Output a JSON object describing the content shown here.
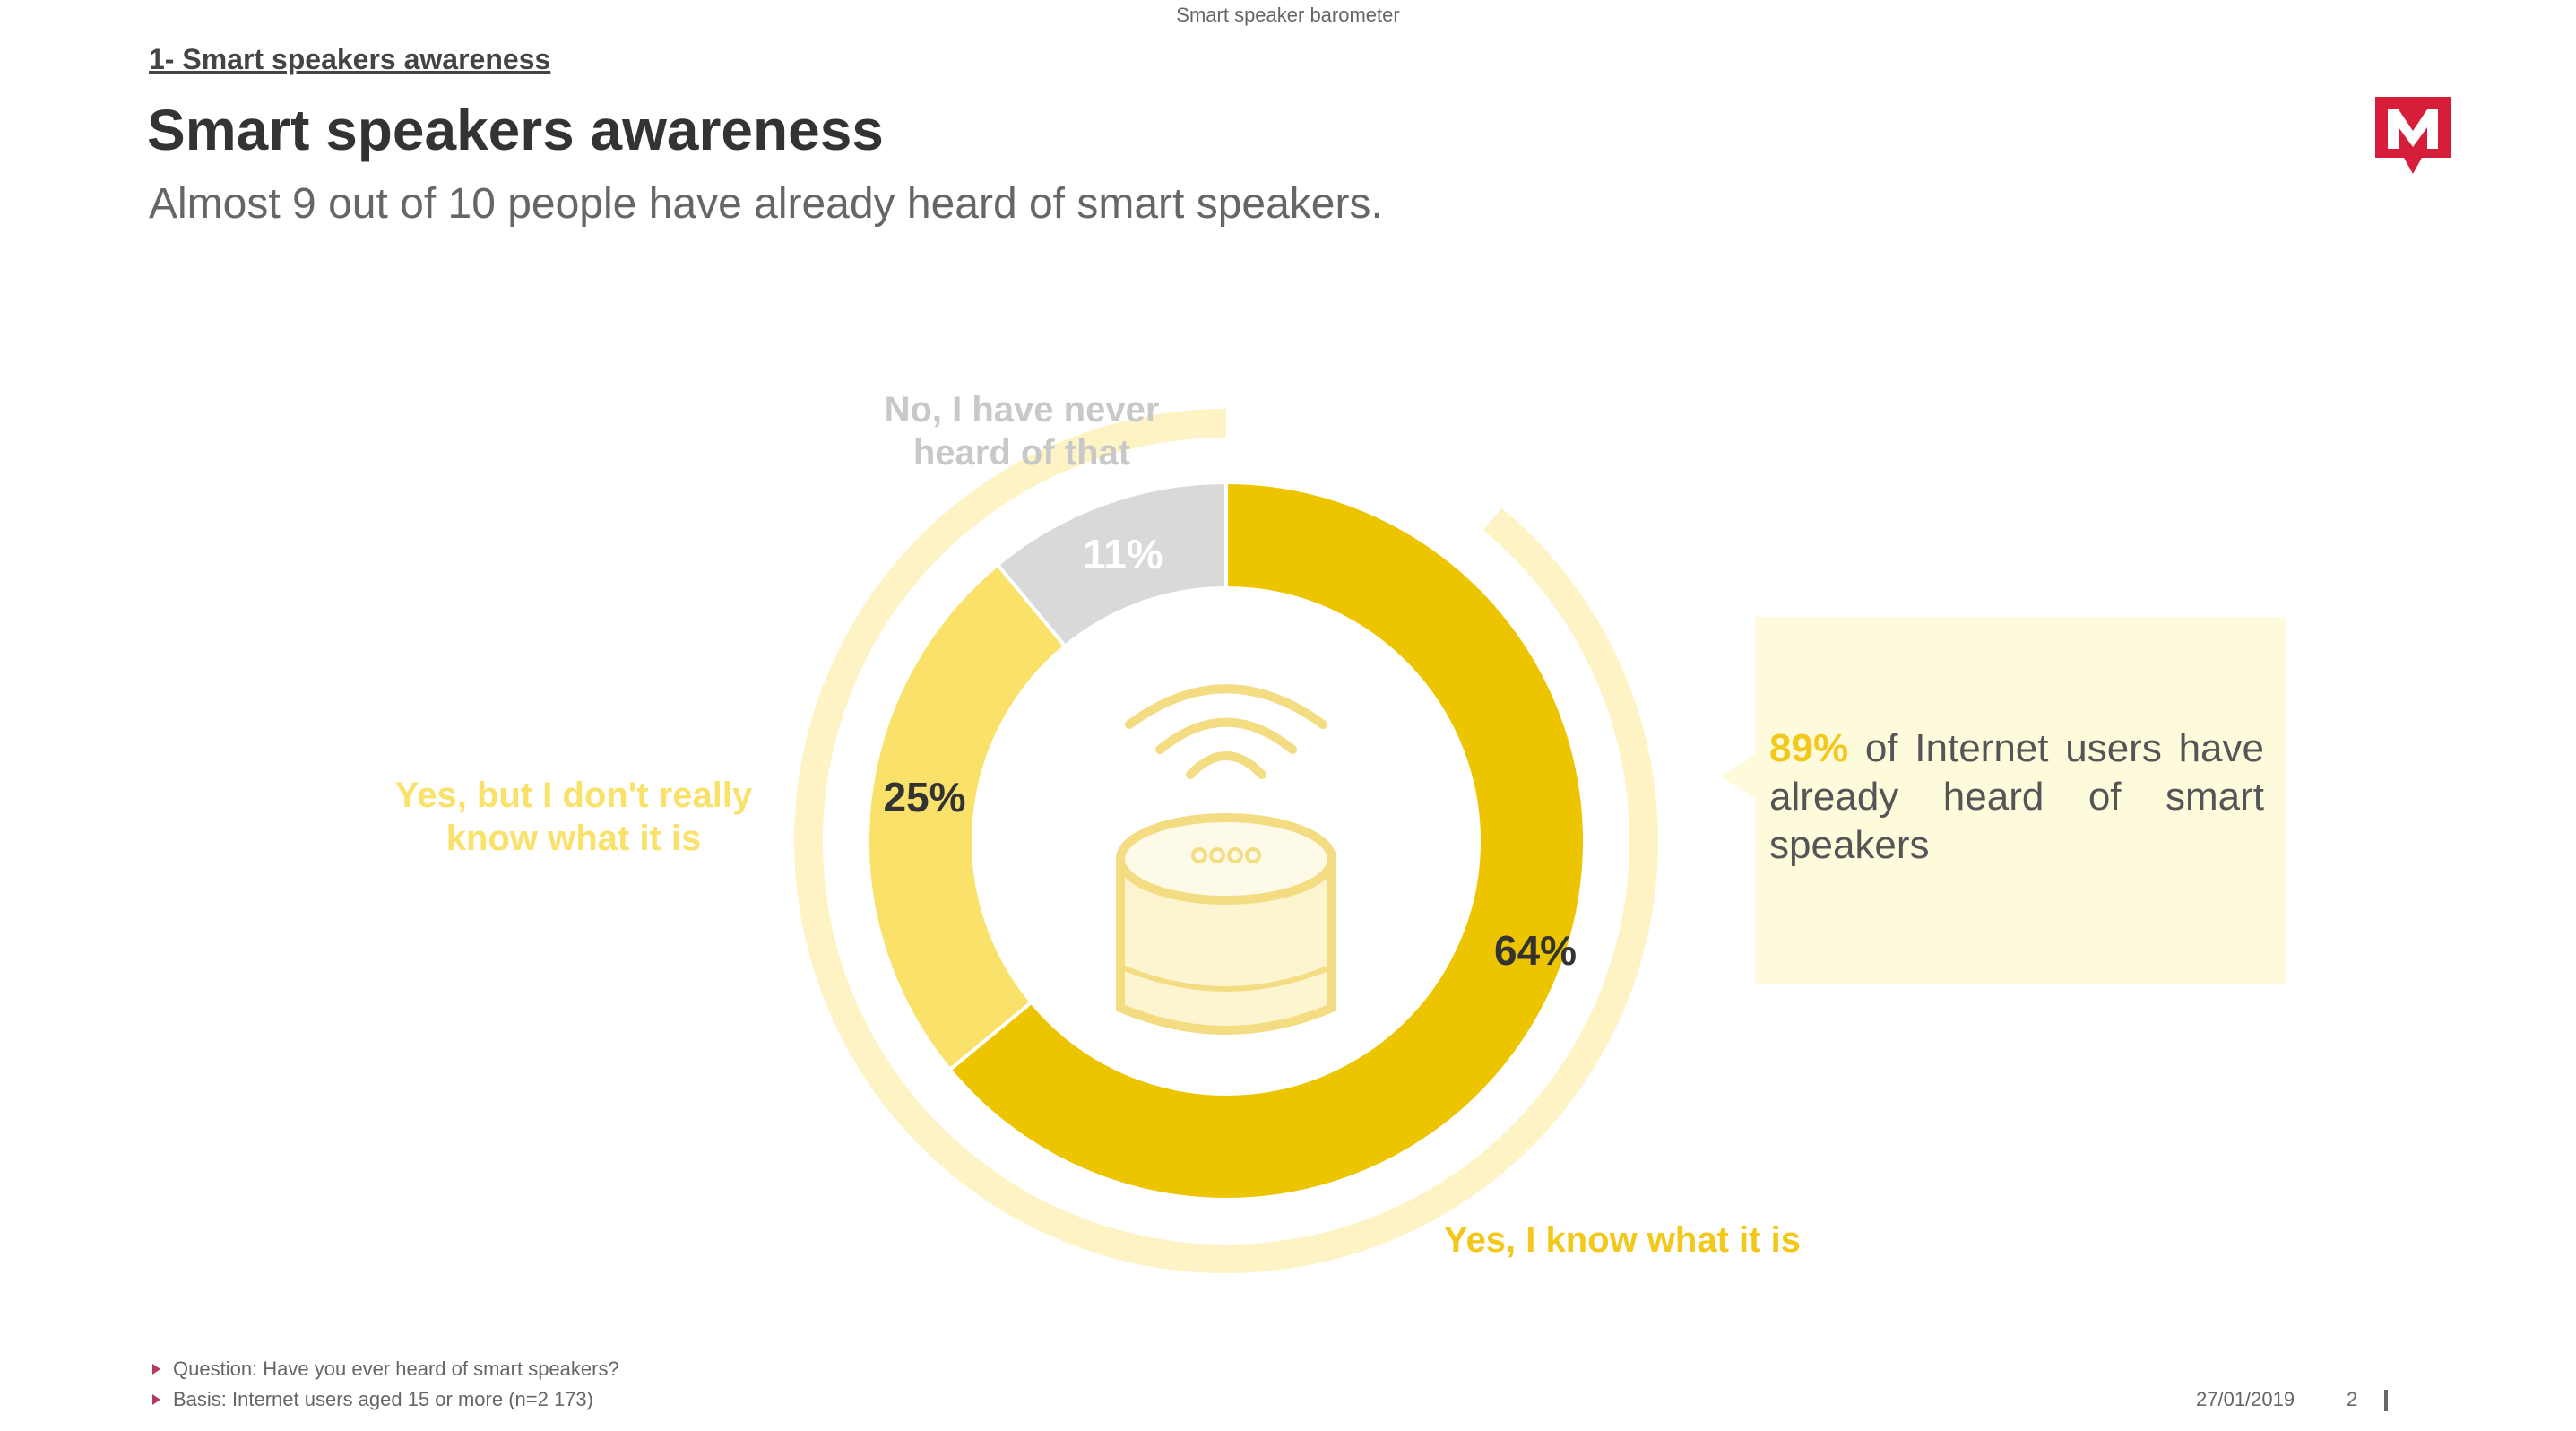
{
  "header": {
    "top_label": "Smart speaker barometer",
    "section_link": "1- Smart speakers awareness",
    "title": "Smart speakers awareness",
    "subtitle": "Almost 9 out of 10 people have already heard of smart speakers."
  },
  "logo": {
    "icon": "m-logo-icon",
    "letter": "M",
    "color": "#d61e3a"
  },
  "chart_data": {
    "type": "pie",
    "style": "donut",
    "title": "",
    "categories": [
      "Yes, I know what it is",
      "Yes, but I don't really know what it is",
      "No, I have never heard of that"
    ],
    "values": [
      64,
      25,
      11
    ],
    "value_labels": [
      "64%",
      "25%",
      "11%"
    ],
    "slice_labels": [
      [
        "Yes, I know what it is"
      ],
      [
        "Yes, but I don't really",
        "know what it is"
      ],
      [
        "No, I have never",
        "heard of that"
      ]
    ],
    "colors": [
      "#ecc400",
      "#f9e16a",
      "#d9d9d9"
    ],
    "label_colors": [
      "#f2c81a",
      "#f9e16a",
      "#c8c8c8"
    ],
    "value_label_colors": [
      "#333333",
      "#333333",
      "#ffffff"
    ],
    "outer_ring": {
      "value": 89,
      "color": "#fdf3c4"
    },
    "center_icon": "smart-speaker-icon"
  },
  "callout": {
    "highlight": "89%",
    "text": " of Internet users have already heard of smart speakers"
  },
  "footer": {
    "notes": [
      "Question: Have you ever heard of smart speakers?",
      "Basis: Internet users aged 15 or more (n=2 173)"
    ],
    "date": "27/01/2019",
    "page": "2"
  }
}
